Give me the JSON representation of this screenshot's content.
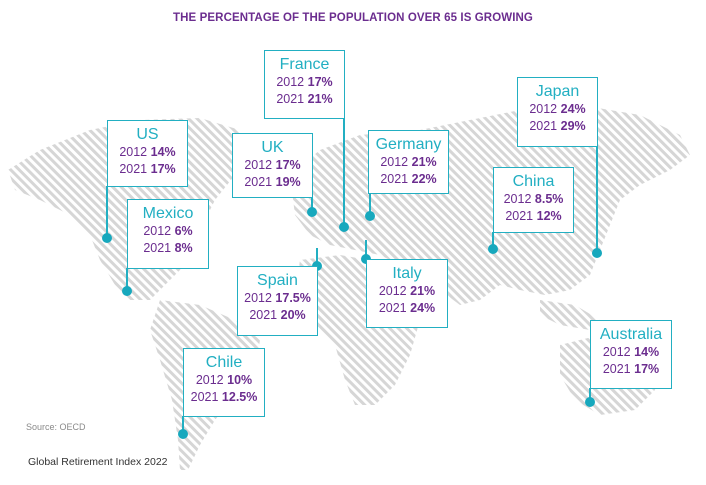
{
  "title": "THE PERCENTAGE OF THE POPULATION OVER 65 IS GROWING",
  "source": "Source: OECD",
  "footer": "Global Retirement Index 2022",
  "colors": {
    "accent": "#22afc2",
    "value": "#6b2d8f",
    "map": "#d9d9d9"
  },
  "year_labels": {
    "a": "2012",
    "b": "2021"
  },
  "countries": [
    {
      "name": "US",
      "y2012": "14%",
      "y2021": "17%"
    },
    {
      "name": "Mexico",
      "y2012": "6%",
      "y2021": "8%"
    },
    {
      "name": "France",
      "y2012": "17%",
      "y2021": "21%"
    },
    {
      "name": "UK",
      "y2012": "17%",
      "y2021": "19%"
    },
    {
      "name": "Germany",
      "y2012": "21%",
      "y2021": "22%"
    },
    {
      "name": "Spain",
      "y2012": "17.5%",
      "y2021": "20%"
    },
    {
      "name": "Italy",
      "y2012": "21%",
      "y2021": "24%"
    },
    {
      "name": "China",
      "y2012": "8.5%",
      "y2021": "12%"
    },
    {
      "name": "Japan",
      "y2012": "24%",
      "y2021": "29%"
    },
    {
      "name": "Australia",
      "y2012": "14%",
      "y2021": "17%"
    },
    {
      "name": "Chile",
      "y2012": "10%",
      "y2021": "12.5%"
    }
  ]
}
